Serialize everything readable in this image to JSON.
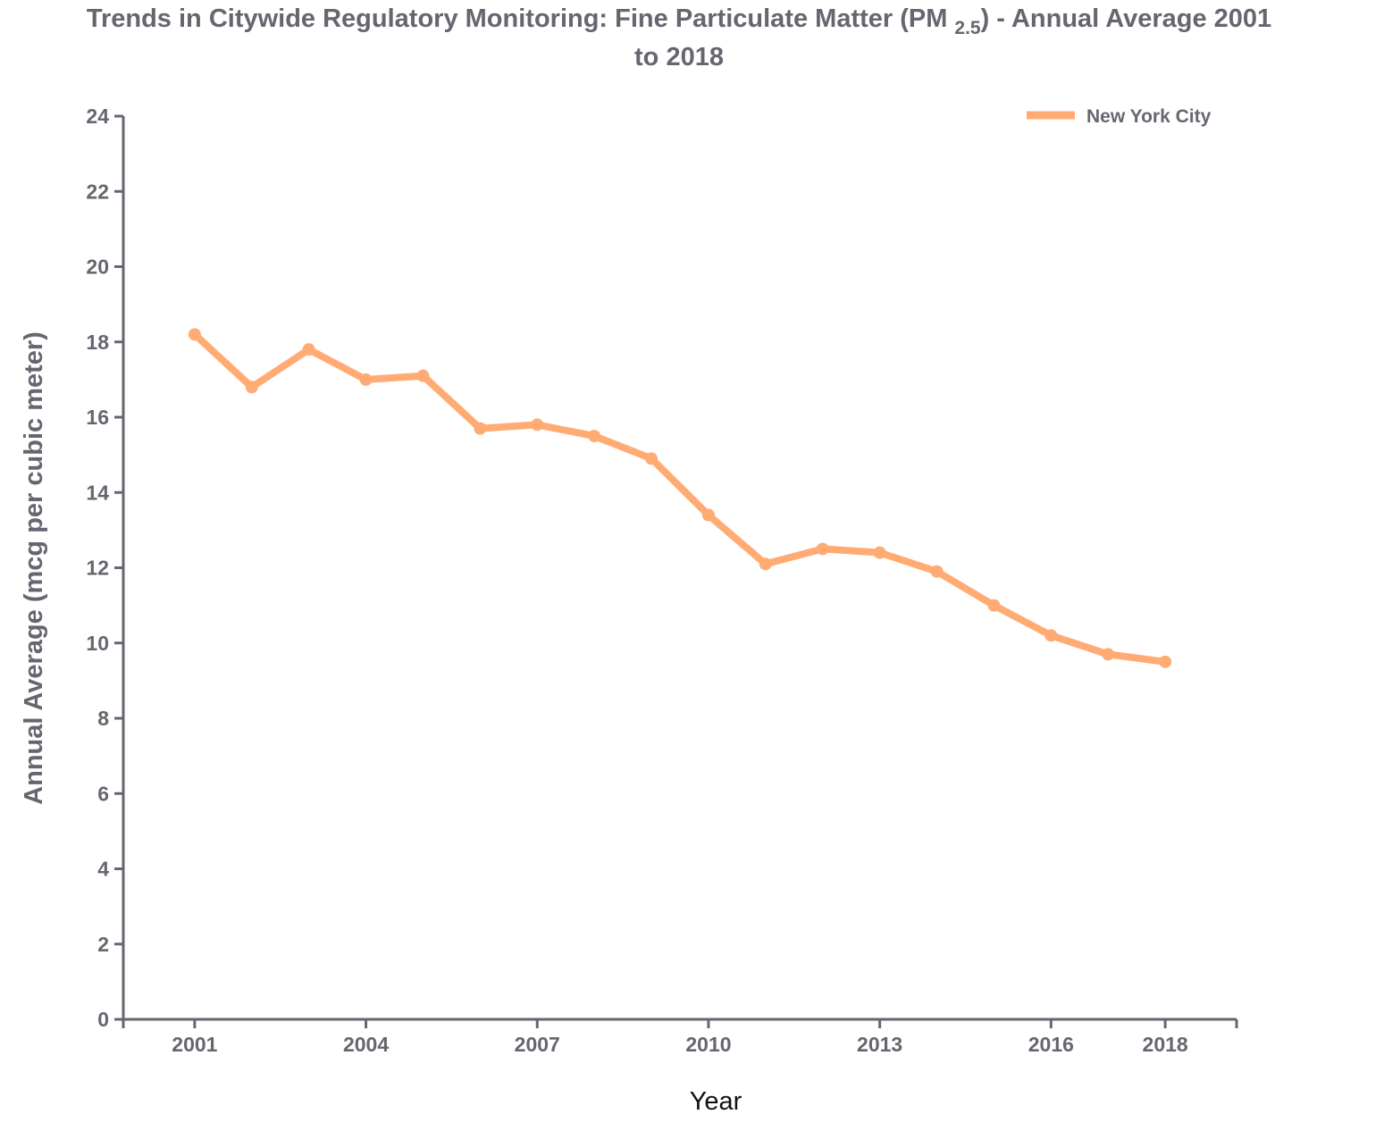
{
  "chart_data": {
    "type": "line",
    "title": {
      "prefix": "Trends in Citywide Regulatory Monitoring: Fine Particulate Matter (PM",
      "subscript": "2.5",
      "suffix": ") - Annual Average 2001",
      "line2": "to 2018"
    },
    "xlabel": "Year",
    "ylabel": "Annual Average (mcg per cubic meter)",
    "ylim": [
      0,
      24
    ],
    "xlim": [
      1999.75,
      2019.25
    ],
    "y_ticks": [
      0,
      2,
      4,
      6,
      8,
      10,
      12,
      14,
      16,
      18,
      20,
      22,
      24
    ],
    "x_ticks": [
      2001,
      2004,
      2007,
      2010,
      2013,
      2016,
      2018
    ],
    "grid": false,
    "legend_position": "top-right",
    "series": [
      {
        "name": "New York City",
        "color": "#ffab73",
        "x": [
          2001,
          2002,
          2003,
          2004,
          2005,
          2006,
          2007,
          2008,
          2009,
          2010,
          2011,
          2012,
          2013,
          2014,
          2015,
          2016,
          2017,
          2018
        ],
        "y": [
          18.2,
          16.8,
          17.8,
          17.0,
          17.1,
          15.7,
          15.8,
          15.5,
          14.9,
          13.4,
          12.1,
          12.5,
          12.4,
          11.9,
          11.0,
          10.2,
          9.7,
          9.5
        ]
      }
    ]
  }
}
